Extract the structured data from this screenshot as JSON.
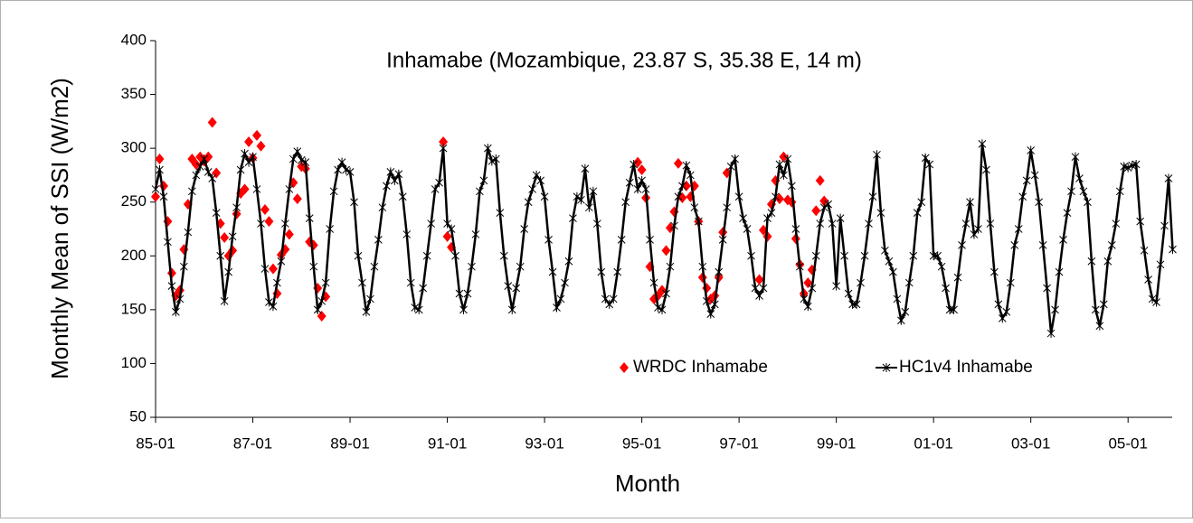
{
  "chart_data": {
    "type": "line",
    "title": "Inhamabe (Mozambique, 23.87 S, 35.38 E, 14 m)",
    "x_label": "Month",
    "y_label": "Monthly Mean of SSI (W/m2)",
    "ylim": [
      50,
      400
    ],
    "yticks": [
      50,
      100,
      150,
      200,
      250,
      300,
      350,
      400
    ],
    "categories": [
      "85-01",
      null,
      null,
      null,
      null,
      null,
      null,
      null,
      null,
      null,
      null,
      null,
      null,
      null,
      null,
      null,
      null,
      null,
      null,
      null,
      null,
      null,
      null,
      null,
      "87-01",
      null,
      null,
      null,
      null,
      null,
      null,
      null,
      null,
      null,
      null,
      null,
      null,
      null,
      null,
      null,
      null,
      null,
      null,
      null,
      null,
      null,
      null,
      null,
      "89-01",
      null,
      null,
      null,
      null,
      null,
      null,
      null,
      null,
      null,
      null,
      null,
      null,
      null,
      null,
      null,
      null,
      null,
      null,
      null,
      null,
      null,
      null,
      null,
      "91-01",
      null,
      null,
      null,
      null,
      null,
      null,
      null,
      null,
      null,
      null,
      null,
      null,
      null,
      null,
      null,
      null,
      null,
      null,
      null,
      null,
      null,
      null,
      null,
      "93-01",
      null,
      null,
      null,
      null,
      null,
      null,
      null,
      null,
      null,
      null,
      null,
      null,
      null,
      null,
      null,
      null,
      null,
      null,
      null,
      null,
      null,
      null,
      null,
      "95-01",
      null,
      null,
      null,
      null,
      null,
      null,
      null,
      null,
      null,
      null,
      null,
      null,
      null,
      null,
      null,
      null,
      null,
      null,
      null,
      null,
      null,
      null,
      null,
      "97-01",
      null,
      null,
      null,
      null,
      null,
      null,
      null,
      null,
      null,
      null,
      null,
      null,
      null,
      null,
      null,
      null,
      null,
      null,
      null,
      null,
      null,
      null,
      null,
      "99-01",
      null,
      null,
      null,
      null,
      null,
      null,
      null,
      null,
      null,
      null,
      null,
      null,
      null,
      null,
      null,
      null,
      null,
      null,
      null,
      null,
      null,
      null,
      null,
      "01-01",
      null,
      null,
      null,
      null,
      null,
      null,
      null,
      null,
      null,
      null,
      null,
      null,
      null,
      null,
      null,
      null,
      null,
      null,
      null,
      null,
      null,
      null,
      null,
      "03-01",
      null,
      null,
      null,
      null,
      null,
      null,
      null,
      null,
      null,
      null,
      null,
      null,
      null,
      null,
      null,
      null,
      null,
      null,
      null,
      null,
      null,
      null,
      null,
      "05-01",
      null,
      null,
      null,
      null,
      null,
      null,
      null,
      null,
      null,
      null,
      null
    ],
    "series": [
      {
        "name": "WRDC Inhamabe",
        "color": "#ff0000",
        "marker": "diamond",
        "line": false,
        "values": [
          255,
          290,
          265,
          232,
          184,
          163,
          168,
          206,
          248,
          290,
          285,
          292,
          288,
          292,
          324,
          277,
          230,
          217,
          200,
          205,
          239,
          258,
          262,
          306,
          291,
          312,
          302,
          243,
          232,
          188,
          165,
          201,
          206,
          220,
          268,
          253,
          283,
          281,
          213,
          210,
          170,
          144,
          162,
          null,
          null,
          null,
          null,
          null,
          null,
          null,
          null,
          null,
          null,
          null,
          null,
          null,
          null,
          null,
          null,
          null,
          null,
          null,
          null,
          null,
          null,
          null,
          null,
          null,
          null,
          null,
          null,
          306,
          218,
          208,
          null,
          null,
          null,
          null,
          null,
          null,
          null,
          null,
          null,
          null,
          null,
          null,
          null,
          null,
          null,
          null,
          null,
          null,
          null,
          null,
          null,
          null,
          null,
          null,
          null,
          null,
          null,
          null,
          null,
          null,
          null,
          null,
          null,
          null,
          null,
          null,
          null,
          null,
          null,
          null,
          null,
          null,
          null,
          null,
          null,
          287,
          280,
          254,
          190,
          160,
          163,
          168,
          205,
          226,
          241,
          286,
          254,
          265,
          255,
          265,
          232,
          180,
          170,
          160,
          163,
          180,
          222,
          277,
          null,
          null,
          null,
          null,
          null,
          null,
          null,
          178,
          224,
          218,
          248,
          270,
          253,
          292,
          252,
          250,
          216,
          192,
          165,
          175,
          187,
          242,
          270,
          251,
          null,
          null,
          null,
          null,
          null,
          null,
          null,
          null,
          null,
          null,
          null,
          null,
          null,
          null,
          null,
          null,
          null,
          null,
          null,
          null,
          null,
          null,
          null,
          null,
          null,
          null,
          null,
          null,
          null,
          null,
          null,
          null,
          null,
          null,
          null,
          null,
          null,
          null,
          null,
          null,
          null,
          null,
          null,
          null,
          null,
          null,
          null,
          null,
          null,
          null,
          null,
          null,
          null,
          null,
          null,
          null,
          null,
          null,
          null,
          null,
          null,
          null,
          null,
          null,
          null,
          null,
          null,
          null,
          null,
          null,
          null,
          null,
          null,
          null,
          null,
          null,
          null,
          null,
          null,
          null,
          null,
          null,
          null,
          null,
          null,
          null
        ]
      },
      {
        "name": "HC1v4 Inhamabe",
        "color": "#000000",
        "marker": "star",
        "line": true,
        "values": [
          262,
          280,
          255,
          213,
          172,
          148,
          160,
          190,
          222,
          260,
          275,
          283,
          290,
          278,
          272,
          240,
          200,
          158,
          185,
          218,
          245,
          280,
          295,
          287,
          292,
          262,
          230,
          188,
          157,
          153,
          175,
          195,
          230,
          262,
          290,
          297,
          289,
          287,
          235,
          190,
          150,
          158,
          175,
          225,
          260,
          280,
          287,
          280,
          278,
          250,
          200,
          175,
          148,
          160,
          190,
          215,
          245,
          265,
          278,
          270,
          276,
          255,
          220,
          175,
          152,
          150,
          170,
          200,
          230,
          262,
          268,
          300,
          230,
          225,
          200,
          165,
          150,
          165,
          190,
          220,
          260,
          270,
          300,
          288,
          290,
          240,
          200,
          172,
          150,
          170,
          190,
          225,
          250,
          262,
          275,
          270,
          255,
          215,
          185,
          152,
          160,
          175,
          195,
          235,
          255,
          252,
          281,
          245,
          260,
          230,
          185,
          160,
          155,
          160,
          185,
          215,
          250,
          268,
          285,
          262,
          270,
          262,
          215,
          175,
          152,
          150,
          165,
          190,
          228,
          255,
          265,
          284,
          275,
          245,
          232,
          190,
          158,
          146,
          155,
          185,
          215,
          245,
          283,
          290,
          255,
          235,
          225,
          200,
          170,
          163,
          170,
          235,
          240,
          255,
          285,
          275,
          290,
          265,
          225,
          190,
          160,
          153,
          170,
          200,
          230,
          245,
          248,
          230,
          172,
          235,
          200,
          165,
          155,
          155,
          175,
          200,
          230,
          255,
          294,
          240,
          205,
          195,
          185,
          160,
          140,
          148,
          175,
          200,
          240,
          250,
          291,
          285,
          200,
          200,
          190,
          170,
          150,
          150,
          180,
          210,
          230,
          250,
          220,
          225,
          304,
          280,
          230,
          185,
          155,
          142,
          148,
          175,
          210,
          225,
          255,
          270,
          298,
          275,
          250,
          210,
          170,
          128,
          150,
          185,
          215,
          240,
          260,
          292,
          272,
          260,
          250,
          195,
          150,
          135,
          155,
          195,
          210,
          230,
          260,
          283,
          282,
          284,
          285,
          232,
          205,
          178,
          160,
          157,
          192,
          228,
          272,
          206
        ]
      }
    ]
  }
}
